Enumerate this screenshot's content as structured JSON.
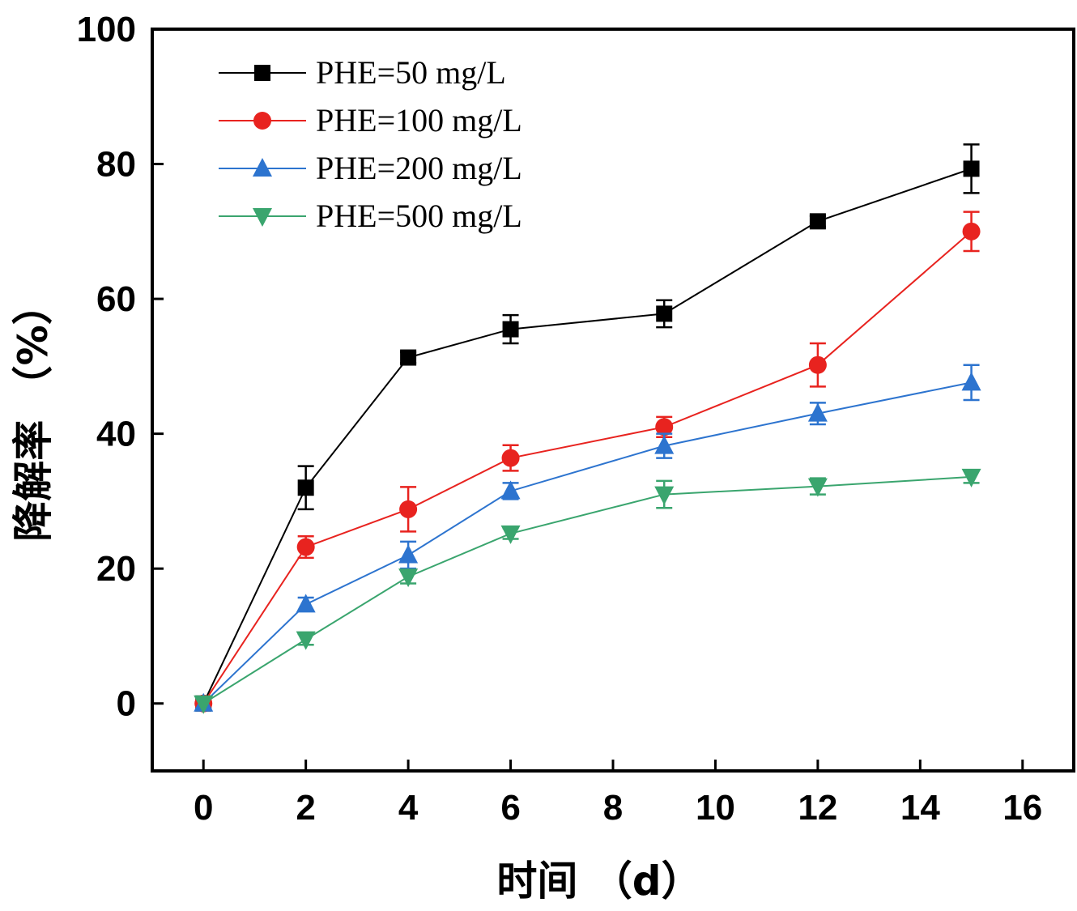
{
  "chart_data": {
    "type": "line",
    "xlabel": "时间 （d）",
    "ylabel": "降解率 （%）",
    "xlim": [
      -1,
      17
    ],
    "ylim": [
      -10,
      100
    ],
    "xticks": [
      0,
      2,
      4,
      6,
      8,
      10,
      12,
      14,
      16
    ],
    "yticks": [
      0,
      20,
      40,
      60,
      80,
      100
    ],
    "legend_position": "top-left",
    "x": [
      0,
      2,
      4,
      6,
      9,
      12,
      15
    ],
    "series": [
      {
        "name": "PHE=50 mg/L",
        "color": "#000000",
        "marker": "square",
        "values": [
          0,
          32,
          51.3,
          55.5,
          57.8,
          71.5,
          79.3
        ],
        "errors": [
          0,
          3.2,
          0.8,
          2.1,
          2.0,
          0.8,
          3.6
        ]
      },
      {
        "name": "PHE=100 mg/L",
        "color": "#e8231f",
        "marker": "circle",
        "values": [
          0,
          23.2,
          28.8,
          36.4,
          41.0,
          50.2,
          70.0
        ],
        "errors": [
          0,
          1.6,
          3.3,
          1.9,
          1.5,
          3.2,
          2.9
        ]
      },
      {
        "name": "PHE=200 mg/L",
        "color": "#2d74cf",
        "marker": "triangle-up",
        "values": [
          0,
          14.7,
          22.0,
          31.5,
          38.2,
          43.0,
          47.6
        ],
        "errors": [
          0,
          1.0,
          2.0,
          1.2,
          1.8,
          1.6,
          2.6
        ]
      },
      {
        "name": "PHE=500 mg/L",
        "color": "#3aa56e",
        "marker": "triangle-down",
        "values": [
          0,
          9.5,
          18.8,
          25.2,
          31.0,
          32.2,
          33.6
        ],
        "errors": [
          0,
          0.8,
          1.0,
          0.8,
          2.0,
          1.2,
          0.9
        ]
      }
    ]
  }
}
